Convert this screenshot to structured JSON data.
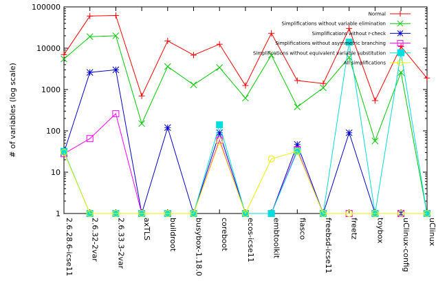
{
  "chart_data": {
    "type": "line",
    "xlabel": "",
    "ylabel": "# of variables (log scale)",
    "yscale": "log",
    "ylim": [
      1,
      100000
    ],
    "yticks": [
      {
        "value": 1,
        "label": "1"
      },
      {
        "value": 10,
        "label": "10"
      },
      {
        "value": 100,
        "label": "100"
      },
      {
        "value": 1000,
        "label": "1000"
      },
      {
        "value": 10000,
        "label": "10000"
      },
      {
        "value": 100000,
        "label": "100000"
      }
    ],
    "grid": false,
    "legend_position": "top-right",
    "categories": [
      "2.6.28.6-icse11",
      "2.6.32-2var",
      "2.6.33.3-2var",
      "axTLS",
      "buildroot",
      "busybox-1.18.0",
      "coreboot",
      "ecos-icse11",
      "embtoolkit",
      "fiasco",
      "freebsd-icse11",
      "freetz",
      "toybox",
      "uClinux-config",
      "uClinux"
    ],
    "series": [
      {
        "name": "Normal",
        "color": "#ff0000",
        "marker": "plus",
        "values": [
          7000,
          60000,
          62000,
          700,
          15000,
          6800,
          12500,
          1250,
          23000,
          1650,
          1400,
          30000,
          540,
          11000,
          1900
        ]
      },
      {
        "name": "Simplifications without variable elimination",
        "color": "#00cc00",
        "marker": "cross",
        "values": [
          5500,
          19000,
          20000,
          150,
          3600,
          1300,
          3400,
          620,
          6800,
          380,
          1100,
          6000,
          57,
          2600,
          1
        ]
      },
      {
        "name": "Simplifications without r-check",
        "color": "#0000cc",
        "marker": "star",
        "values": [
          30,
          2600,
          3000,
          1,
          120,
          1,
          90,
          1,
          1,
          47,
          1,
          90,
          1,
          1,
          1
        ]
      },
      {
        "name": "Simplifications without asymmetric branching",
        "color": "#ff00ff",
        "marker": "square-open",
        "values": [
          28,
          65,
          260,
          1,
          1,
          1,
          60,
          1,
          1,
          35,
          1,
          1,
          1,
          1,
          1
        ]
      },
      {
        "name": "Simplifications without equivalent variable substitution",
        "color": "#00dddd",
        "marker": "square-filled",
        "values": [
          32,
          1,
          1,
          1,
          1,
          1,
          140,
          1,
          1,
          32,
          1,
          14000,
          1,
          7800,
          1
        ]
      },
      {
        "name": "All simplifications",
        "color": "#eeee00",
        "marker": "circle-open",
        "values": [
          30,
          1,
          1,
          1,
          1,
          1,
          55,
          1,
          21,
          32,
          1,
          1,
          1,
          1,
          1
        ]
      }
    ]
  }
}
